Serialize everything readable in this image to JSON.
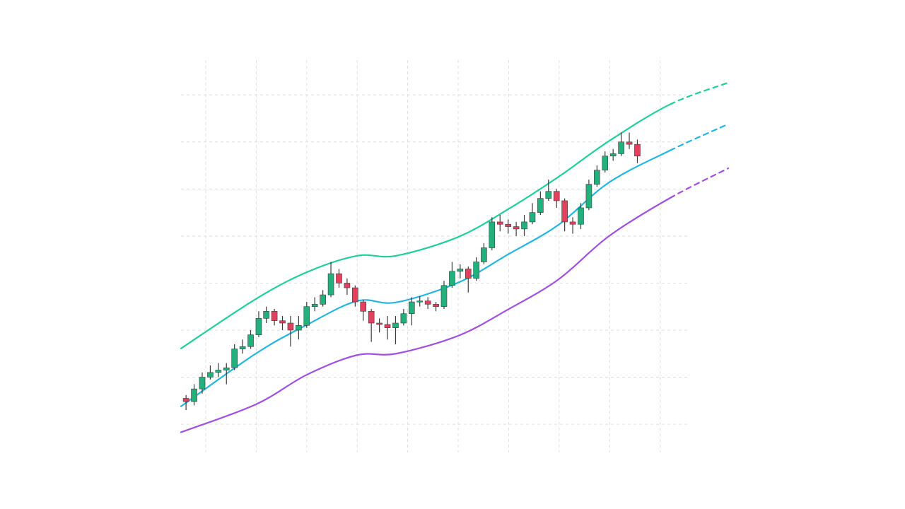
{
  "chart_data": {
    "type": "candlestick",
    "xlim": [
      -0.49,
      9.58
    ],
    "ylim": [
      -0.6,
      7.74
    ],
    "xticks": [
      0,
      1,
      2,
      3,
      4,
      5,
      6,
      7,
      8,
      9
    ],
    "yticks": [
      0,
      1,
      2,
      3,
      4,
      5,
      6,
      7
    ],
    "grid": true,
    "up_color": "#22b07d",
    "down_color": "#e3405e",
    "x": [
      -0.39,
      -0.23,
      -0.07,
      0.09,
      0.25,
      0.41,
      0.57,
      0.73,
      0.89,
      1.05,
      1.2,
      1.36,
      1.52,
      1.68,
      1.84,
      2.0,
      2.16,
      2.32,
      2.48,
      2.64,
      2.8,
      2.96,
      3.12,
      3.28,
      3.44,
      3.6,
      3.76,
      3.92,
      4.08,
      4.24,
      4.4,
      4.56,
      4.72,
      4.88,
      5.04,
      5.2,
      5.36,
      5.51,
      5.67,
      5.83,
      5.99,
      6.15,
      6.31,
      6.47,
      6.63,
      6.79,
      6.95,
      7.11,
      7.27,
      7.43,
      7.59,
      7.75,
      7.91,
      8.07,
      8.23,
      8.39,
      8.55
    ],
    "open": [
      0.55,
      0.48,
      0.75,
      1.0,
      1.1,
      1.15,
      1.2,
      1.6,
      1.65,
      1.9,
      2.25,
      2.4,
      2.2,
      2.15,
      2.0,
      2.1,
      2.5,
      2.55,
      2.75,
      3.2,
      3.0,
      2.9,
      2.6,
      2.4,
      2.15,
      2.12,
      2.05,
      2.15,
      2.35,
      2.6,
      2.62,
      2.55,
      2.5,
      2.95,
      3.25,
      3.3,
      3.1,
      3.45,
      3.75,
      4.3,
      4.25,
      4.2,
      4.15,
      4.3,
      4.5,
      4.8,
      4.95,
      4.75,
      4.3,
      4.25,
      4.6,
      5.1,
      5.4,
      5.7,
      5.75,
      6.0,
      5.95
    ],
    "high": [
      0.62,
      0.85,
      1.1,
      1.25,
      1.3,
      1.3,
      1.7,
      1.8,
      2.0,
      2.4,
      2.5,
      2.45,
      2.3,
      2.3,
      2.3,
      2.6,
      2.7,
      2.85,
      3.45,
      3.3,
      3.1,
      2.95,
      2.65,
      2.45,
      2.25,
      2.3,
      2.3,
      2.45,
      2.7,
      2.72,
      2.7,
      2.6,
      3.05,
      3.45,
      3.4,
      3.35,
      3.55,
      3.85,
      4.4,
      4.45,
      4.35,
      4.3,
      4.45,
      4.7,
      4.95,
      5.2,
      5.0,
      4.8,
      4.4,
      4.7,
      5.2,
      5.5,
      5.8,
      5.85,
      6.2,
      6.2,
      6.05
    ],
    "low": [
      0.3,
      0.4,
      0.65,
      0.95,
      1.0,
      0.85,
      1.15,
      1.5,
      1.6,
      1.85,
      2.15,
      2.1,
      2.0,
      1.65,
      1.8,
      2.05,
      2.4,
      2.5,
      2.7,
      2.9,
      2.75,
      2.5,
      2.2,
      1.75,
      1.95,
      1.8,
      1.7,
      2.1,
      2.1,
      2.5,
      2.45,
      2.4,
      2.45,
      2.9,
      3.1,
      2.8,
      3.05,
      3.4,
      3.7,
      4.1,
      4.05,
      4.0,
      4.0,
      4.25,
      4.45,
      4.75,
      4.6,
      4.1,
      4.05,
      4.15,
      4.55,
      5.05,
      5.35,
      5.6,
      5.7,
      5.85,
      5.55
    ],
    "close": [
      0.48,
      0.75,
      1.0,
      1.1,
      1.15,
      1.2,
      1.6,
      1.65,
      1.9,
      2.25,
      2.4,
      2.2,
      2.15,
      2.0,
      2.1,
      2.5,
      2.55,
      2.75,
      3.2,
      3.0,
      2.9,
      2.6,
      2.4,
      2.15,
      2.12,
      2.05,
      2.15,
      2.35,
      2.6,
      2.62,
      2.55,
      2.5,
      2.95,
      3.25,
      3.3,
      3.1,
      3.45,
      3.75,
      4.3,
      4.25,
      4.2,
      4.15,
      4.3,
      4.5,
      4.8,
      4.95,
      4.75,
      4.3,
      4.25,
      4.6,
      5.1,
      5.4,
      5.7,
      5.75,
      6.0,
      5.95,
      5.7
    ],
    "bands": [
      {
        "color": "#1fcf9a",
        "dashed_from": 9,
        "x": [
          -0.49,
          0.99,
          2.0,
          3.0,
          3.77,
          5.0,
          5.99,
          6.99,
          7.99,
          9.2,
          10.35
        ],
        "values": [
          1.61,
          2.66,
          3.23,
          3.58,
          3.58,
          3.98,
          4.57,
          5.26,
          6.02,
          6.8,
          7.26
        ]
      },
      {
        "color": "#22b5e3",
        "dashed_from": 9,
        "x": [
          -0.49,
          0.99,
          2.0,
          3.0,
          3.77,
          5.0,
          5.99,
          6.99,
          7.99,
          9.2,
          10.35
        ],
        "values": [
          0.38,
          1.5,
          2.11,
          2.62,
          2.59,
          3.01,
          3.61,
          4.24,
          5.14,
          5.82,
          6.38
        ]
      },
      {
        "color": "#a050e0",
        "dashed_from": 9,
        "x": [
          -0.49,
          0.99,
          2.0,
          3.0,
          3.77,
          5.0,
          5.99,
          6.99,
          7.99,
          9.2,
          10.35
        ],
        "values": [
          -0.17,
          0.42,
          1.05,
          1.47,
          1.5,
          1.88,
          2.44,
          3.08,
          4.0,
          4.81,
          5.44
        ]
      }
    ]
  }
}
